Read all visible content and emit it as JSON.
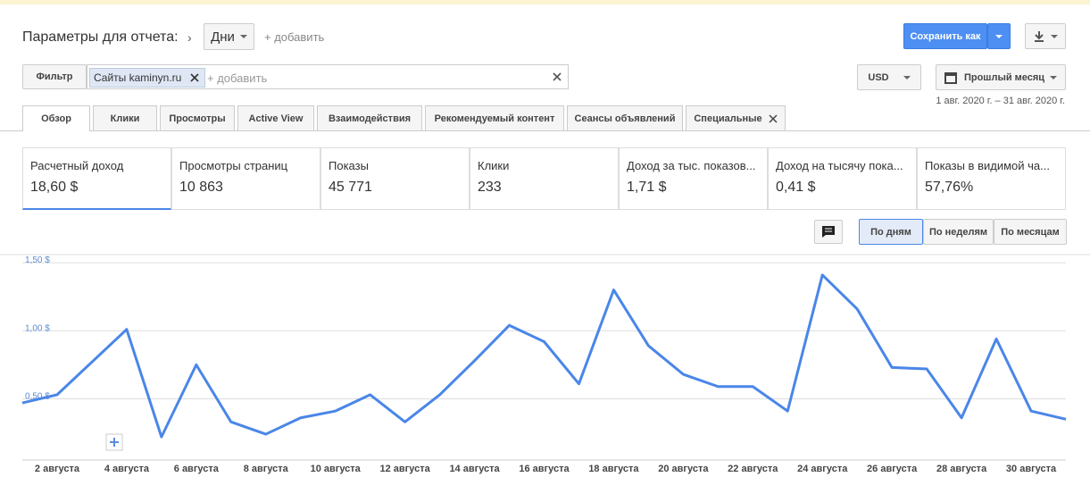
{
  "header": {
    "title": "Параметры для отчета:",
    "dimension": "Дни",
    "add": "+ добавить",
    "save": "Сохранить как"
  },
  "filter": {
    "label": "Фильтр",
    "chip": "Сайты kaminyn.ru",
    "add": "+ добавить"
  },
  "currency": "USD",
  "period": "Прошлый месяц",
  "date_range": "1 авг. 2020 г. – 31 авг. 2020 г.",
  "tabs": [
    "Обзор",
    "Клики",
    "Просмотры",
    "Active View",
    "Взаимодействия",
    "Рекомендуемый контент",
    "Сеансы объявлений",
    "Специальные"
  ],
  "metrics": [
    {
      "label": "Расчетный доход",
      "value": "18,60 $"
    },
    {
      "label": "Просмотры страниц",
      "value": "10 863"
    },
    {
      "label": "Показы",
      "value": "45 771"
    },
    {
      "label": "Клики",
      "value": "233"
    },
    {
      "label": "Доход за тыс. показов...",
      "value": "1,71 $"
    },
    {
      "label": "Доход на тысячу пока...",
      "value": "0,41 $"
    },
    {
      "label": "Показы в видимой ча...",
      "value": "57,76%"
    }
  ],
  "view_buttons": [
    "По дням",
    "По неделям",
    "По месяцам"
  ],
  "chart_data": {
    "type": "line",
    "color": "#4a86e8",
    "categories": [
      null,
      "2 августа",
      null,
      "4 августа",
      null,
      "6 августа",
      null,
      "8 августа",
      null,
      "10 августа",
      null,
      "12 августа",
      null,
      "14 августа",
      null,
      "16 августа",
      null,
      "18 августа",
      null,
      "20 августа",
      null,
      "22 августа",
      null,
      "24 августа",
      null,
      "26 августа",
      null,
      "28 августа",
      null,
      "30 августа",
      null
    ],
    "values": [
      0.47,
      0.53,
      0.77,
      1.01,
      0.22,
      0.75,
      0.33,
      0.24,
      0.36,
      0.41,
      0.53,
      0.33,
      0.53,
      0.78,
      1.04,
      0.92,
      0.61,
      1.3,
      0.89,
      0.68,
      0.59,
      0.59,
      0.41,
      1.41,
      1.16,
      0.73,
      0.72,
      0.36,
      0.94,
      0.41,
      0.35
    ],
    "ylim": [
      0.05,
      1.56
    ],
    "yticks": [
      {
        "value": 0.5,
        "label": "0,50 $"
      },
      {
        "value": 1,
        "label": "1,00 $"
      },
      {
        "value": 1.5,
        "label": "1,50 $"
      }
    ],
    "grid": true
  }
}
